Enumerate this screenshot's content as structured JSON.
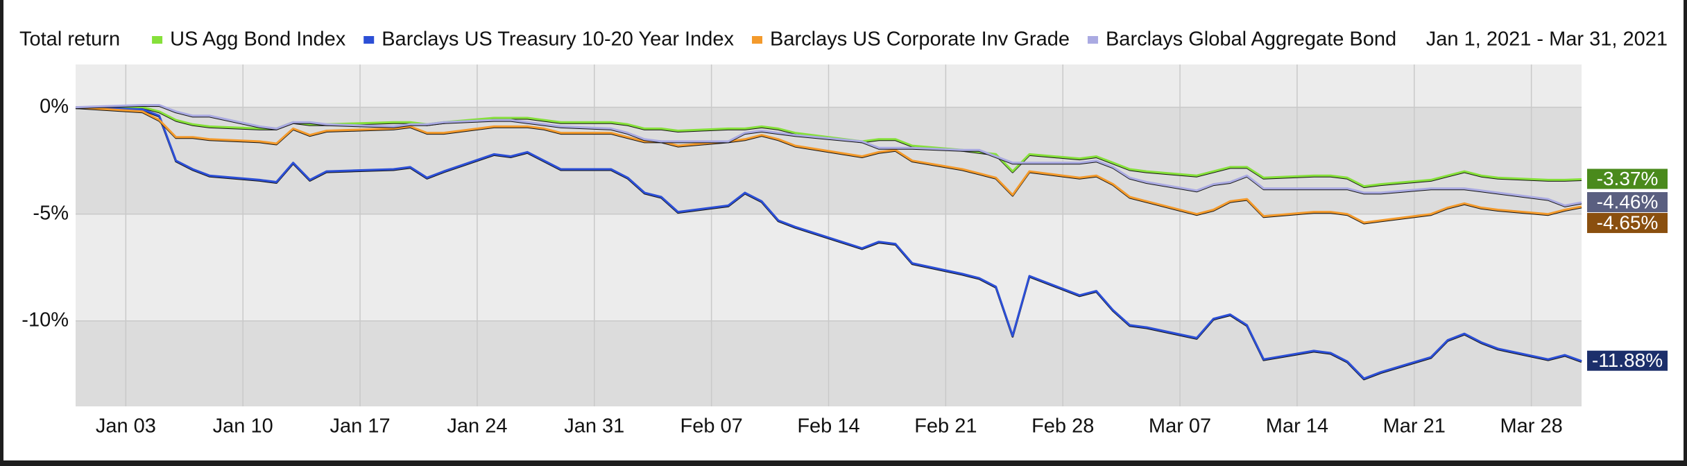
{
  "chart_data": {
    "type": "line",
    "title": "Total return",
    "subtitle": "Jan 1, 2021 - Mar 31, 2021",
    "x": [
      "Dec 31",
      "Jan 04",
      "Jan 05",
      "Jan 06",
      "Jan 07",
      "Jan 08",
      "Jan 11",
      "Jan 12",
      "Jan 13",
      "Jan 14",
      "Jan 15",
      "Jan 19",
      "Jan 20",
      "Jan 21",
      "Jan 22",
      "Jan 25",
      "Jan 26",
      "Jan 27",
      "Jan 28",
      "Jan 29",
      "Feb 01",
      "Feb 02",
      "Feb 03",
      "Feb 04",
      "Feb 05",
      "Feb 08",
      "Feb 09",
      "Feb 10",
      "Feb 11",
      "Feb 12",
      "Feb 16",
      "Feb 17",
      "Feb 18",
      "Feb 19",
      "Feb 22",
      "Feb 23",
      "Feb 24",
      "Feb 25",
      "Feb 26",
      "Mar 01",
      "Mar 02",
      "Mar 03",
      "Mar 04",
      "Mar 05",
      "Mar 08",
      "Mar 09",
      "Mar 10",
      "Mar 11",
      "Mar 12",
      "Mar 15",
      "Mar 16",
      "Mar 17",
      "Mar 18",
      "Mar 19",
      "Mar 22",
      "Mar 23",
      "Mar 24",
      "Mar 25",
      "Mar 26",
      "Mar 29",
      "Mar 30",
      "Mar 31"
    ],
    "xlim": [
      "Dec 31",
      "Mar 31"
    ],
    "xticks": [
      "Jan 03",
      "Jan 10",
      "Jan 17",
      "Jan 24",
      "Jan 31",
      "Feb 07",
      "Feb 14",
      "Feb 21",
      "Feb 28",
      "Mar 07",
      "Mar 14",
      "Mar 21",
      "Mar 28"
    ],
    "ylim": [
      -14,
      2
    ],
    "yticks": [
      {
        "value": 0,
        "label": "0%"
      },
      {
        "value": -5,
        "label": "-5%"
      },
      {
        "value": -10,
        "label": "-10%"
      }
    ],
    "grid": true,
    "series": [
      {
        "name": "US Agg Bond Index",
        "color": "#86e03a",
        "label_color": "#4a8a1c",
        "values": [
          0,
          0,
          -0.2,
          -0.6,
          -0.8,
          -0.9,
          -1.0,
          -1.0,
          -0.7,
          -0.8,
          -0.8,
          -0.7,
          -0.7,
          -0.8,
          -0.7,
          -0.5,
          -0.5,
          -0.5,
          -0.6,
          -0.7,
          -0.7,
          -0.8,
          -1.0,
          -1.0,
          -1.1,
          -1.0,
          -1.0,
          -0.9,
          -1.0,
          -1.2,
          -1.6,
          -1.5,
          -1.5,
          -1.8,
          -2.0,
          -2.1,
          -2.2,
          -3.0,
          -2.2,
          -2.4,
          -2.3,
          -2.6,
          -2.9,
          -3.0,
          -3.2,
          -3.0,
          -2.8,
          -2.8,
          -3.3,
          -3.2,
          -3.2,
          -3.3,
          -3.7,
          -3.6,
          -3.4,
          -3.2,
          -3.0,
          -3.2,
          -3.3,
          -3.4,
          -3.4,
          -3.37
        ],
        "value_labels": [
          null,
          null,
          null,
          null,
          null,
          null,
          null,
          null,
          null,
          null,
          null,
          null,
          null,
          null,
          null,
          null,
          null,
          null,
          null,
          null,
          null,
          null,
          null,
          null,
          null,
          null,
          null,
          null,
          null,
          null,
          null,
          null,
          null,
          null,
          null,
          null,
          null,
          null,
          null,
          null,
          null,
          null,
          null,
          null,
          null,
          null,
          null,
          null,
          null,
          null,
          null,
          null,
          null,
          null,
          null,
          null,
          null,
          null,
          null,
          null,
          null,
          "-3.37%"
        ]
      },
      {
        "name": "Barclays US Treasury 10-20 Year Index",
        "color": "#2c4fd6",
        "label_color": "#1c2f6b",
        "values": [
          0,
          -0.1,
          -0.4,
          -2.5,
          -2.9,
          -3.2,
          -3.4,
          -3.5,
          -2.6,
          -3.4,
          -3.0,
          -2.9,
          -2.8,
          -3.3,
          -3.0,
          -2.2,
          -2.3,
          -2.1,
          -2.5,
          -2.9,
          -2.9,
          -3.3,
          -4.0,
          -4.2,
          -4.9,
          -4.6,
          -4.0,
          -4.4,
          -5.3,
          -5.6,
          -6.6,
          -6.3,
          -6.4,
          -7.3,
          -7.8,
          -8.0,
          -8.4,
          -10.7,
          -7.9,
          -8.8,
          -8.6,
          -9.5,
          -10.2,
          -10.3,
          -10.8,
          -9.9,
          -9.7,
          -10.2,
          -11.8,
          -11.4,
          -11.5,
          -11.9,
          -12.7,
          -12.4,
          -11.7,
          -10.9,
          -10.6,
          -11.0,
          -11.3,
          -11.8,
          -11.6,
          -11.88
        ],
        "value_labels": [
          null,
          null,
          null,
          null,
          null,
          null,
          null,
          null,
          null,
          null,
          null,
          null,
          null,
          null,
          null,
          null,
          null,
          null,
          null,
          null,
          null,
          null,
          null,
          null,
          null,
          null,
          null,
          null,
          null,
          null,
          null,
          null,
          null,
          null,
          null,
          null,
          null,
          null,
          null,
          null,
          null,
          null,
          null,
          null,
          null,
          null,
          null,
          null,
          null,
          null,
          null,
          null,
          null,
          null,
          null,
          null,
          null,
          null,
          null,
          null,
          null,
          "-11.88%"
        ]
      },
      {
        "name": "Barclays US Corporate Inv Grade",
        "color": "#f39a2c",
        "label_color": "#8a4f0f",
        "values": [
          0,
          -0.2,
          -0.6,
          -1.4,
          -1.4,
          -1.5,
          -1.6,
          -1.7,
          -1.0,
          -1.3,
          -1.1,
          -1.0,
          -0.9,
          -1.2,
          -1.2,
          -0.9,
          -0.9,
          -0.9,
          -1.0,
          -1.2,
          -1.2,
          -1.4,
          -1.6,
          -1.6,
          -1.8,
          -1.6,
          -1.5,
          -1.3,
          -1.5,
          -1.8,
          -2.3,
          -2.1,
          -2.0,
          -2.5,
          -2.9,
          -3.1,
          -3.3,
          -4.1,
          -3.0,
          -3.3,
          -3.2,
          -3.6,
          -4.2,
          -4.4,
          -5.0,
          -4.8,
          -4.4,
          -4.3,
          -5.1,
          -4.9,
          -4.9,
          -5.0,
          -5.4,
          -5.3,
          -5.0,
          -4.7,
          -4.5,
          -4.7,
          -4.8,
          -5.0,
          -4.8,
          -4.65
        ],
        "value_labels": [
          null,
          null,
          null,
          null,
          null,
          null,
          null,
          null,
          null,
          null,
          null,
          null,
          null,
          null,
          null,
          null,
          null,
          null,
          null,
          null,
          null,
          null,
          null,
          null,
          null,
          null,
          null,
          null,
          null,
          null,
          null,
          null,
          null,
          null,
          null,
          null,
          null,
          null,
          null,
          null,
          null,
          null,
          null,
          null,
          null,
          null,
          null,
          null,
          null,
          null,
          null,
          null,
          null,
          null,
          null,
          null,
          null,
          null,
          null,
          null,
          null,
          "-4.65%"
        ]
      },
      {
        "name": "Barclays Global Aggregate Bond",
        "color": "#aaaae2",
        "label_color": "#5a5f80",
        "values": [
          0,
          0.1,
          0.1,
          -0.2,
          -0.4,
          -0.4,
          -0.9,
          -1.0,
          -0.7,
          -0.7,
          -0.8,
          -0.9,
          -0.8,
          -0.8,
          -0.7,
          -0.6,
          -0.6,
          -0.7,
          -0.8,
          -0.9,
          -1.0,
          -1.2,
          -1.5,
          -1.6,
          -1.6,
          -1.6,
          -1.2,
          -1.1,
          -1.2,
          -1.3,
          -1.6,
          -1.9,
          -1.9,
          -1.9,
          -2.0,
          -2.0,
          -2.3,
          -2.6,
          -2.6,
          -2.6,
          -2.5,
          -2.8,
          -3.3,
          -3.5,
          -3.9,
          -3.6,
          -3.5,
          -3.2,
          -3.8,
          -3.8,
          -3.8,
          -3.8,
          -4.0,
          -4.0,
          -3.8,
          -3.8,
          -3.8,
          -3.9,
          -4.0,
          -4.3,
          -4.6,
          -4.46
        ],
        "value_labels": [
          null,
          null,
          null,
          null,
          null,
          null,
          null,
          null,
          null,
          null,
          null,
          null,
          null,
          null,
          null,
          null,
          null,
          null,
          null,
          null,
          null,
          null,
          null,
          null,
          null,
          null,
          null,
          null,
          null,
          null,
          null,
          null,
          null,
          null,
          null,
          null,
          null,
          null,
          null,
          null,
          null,
          null,
          null,
          null,
          null,
          null,
          null,
          null,
          null,
          null,
          null,
          null,
          null,
          null,
          null,
          null,
          null,
          null,
          null,
          null,
          null,
          "-4.46%"
        ]
      }
    ]
  }
}
